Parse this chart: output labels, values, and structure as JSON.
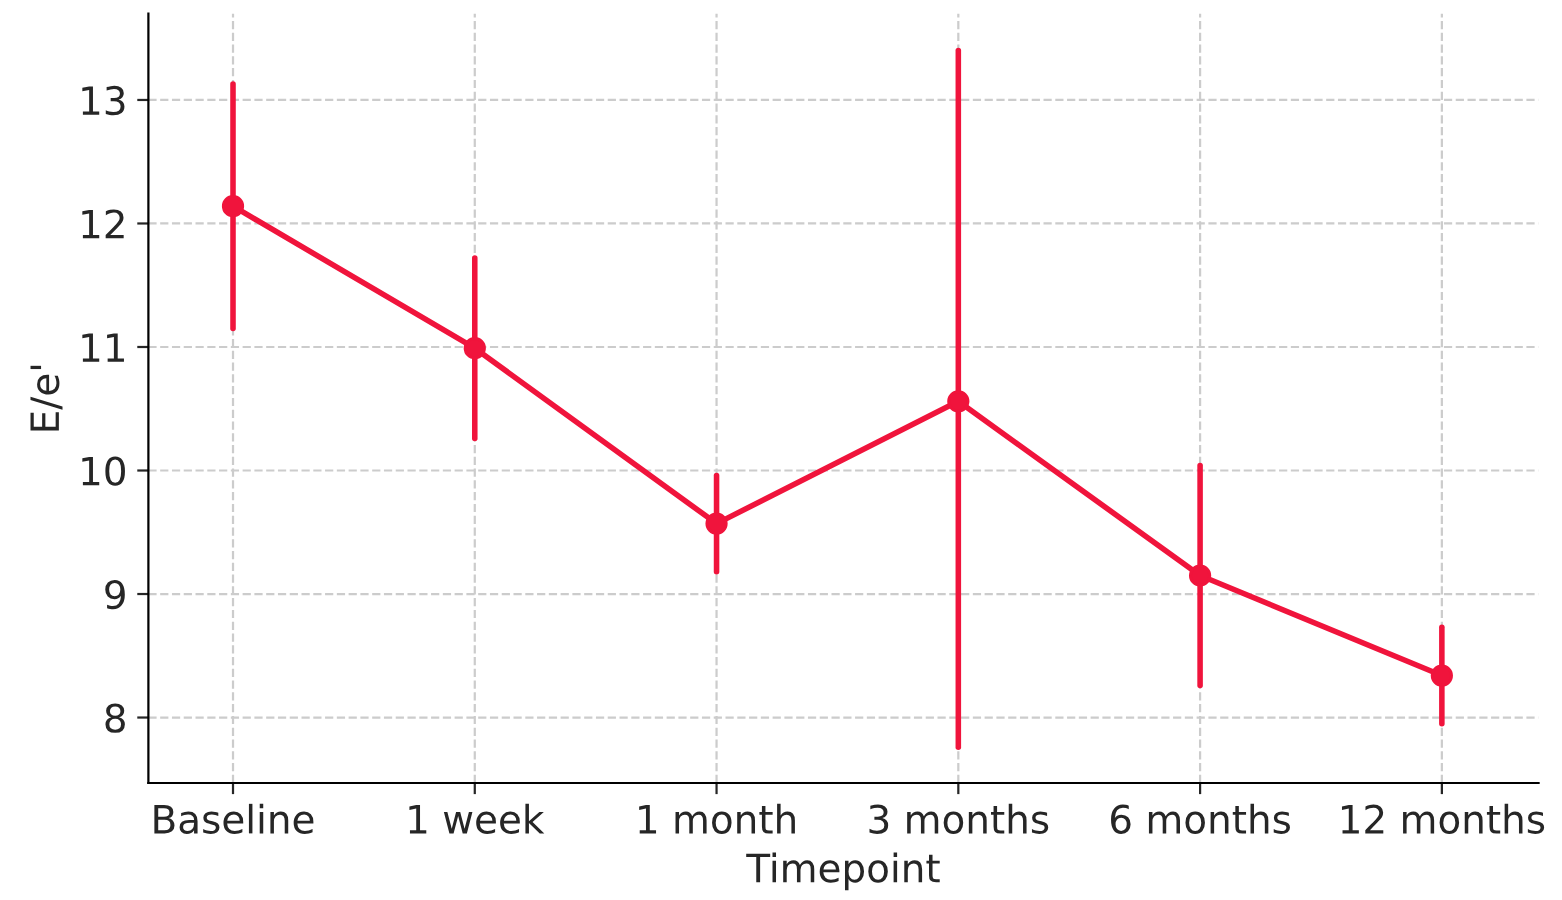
{
  "chart_data": {
    "type": "line",
    "xlabel": "Timepoint",
    "ylabel": "E/e'",
    "categories": [
      "Baseline",
      "1 week",
      "1 month",
      "3 months",
      "6 months",
      "12 months"
    ],
    "series": [
      {
        "color": "#f0143c",
        "values": [
          12.14,
          10.99,
          9.57,
          10.56,
          9.15,
          8.34
        ],
        "errors": [
          0.99,
          0.73,
          0.39,
          [
            7.76,
            13.4
          ],
          0.89,
          0.39
        ]
      }
    ],
    "ylim": [
      7.47,
      13.7
    ],
    "yticks": [
      8,
      9,
      10,
      11,
      12,
      13
    ],
    "grid": true,
    "marker": "circle",
    "line_style": "solid"
  }
}
